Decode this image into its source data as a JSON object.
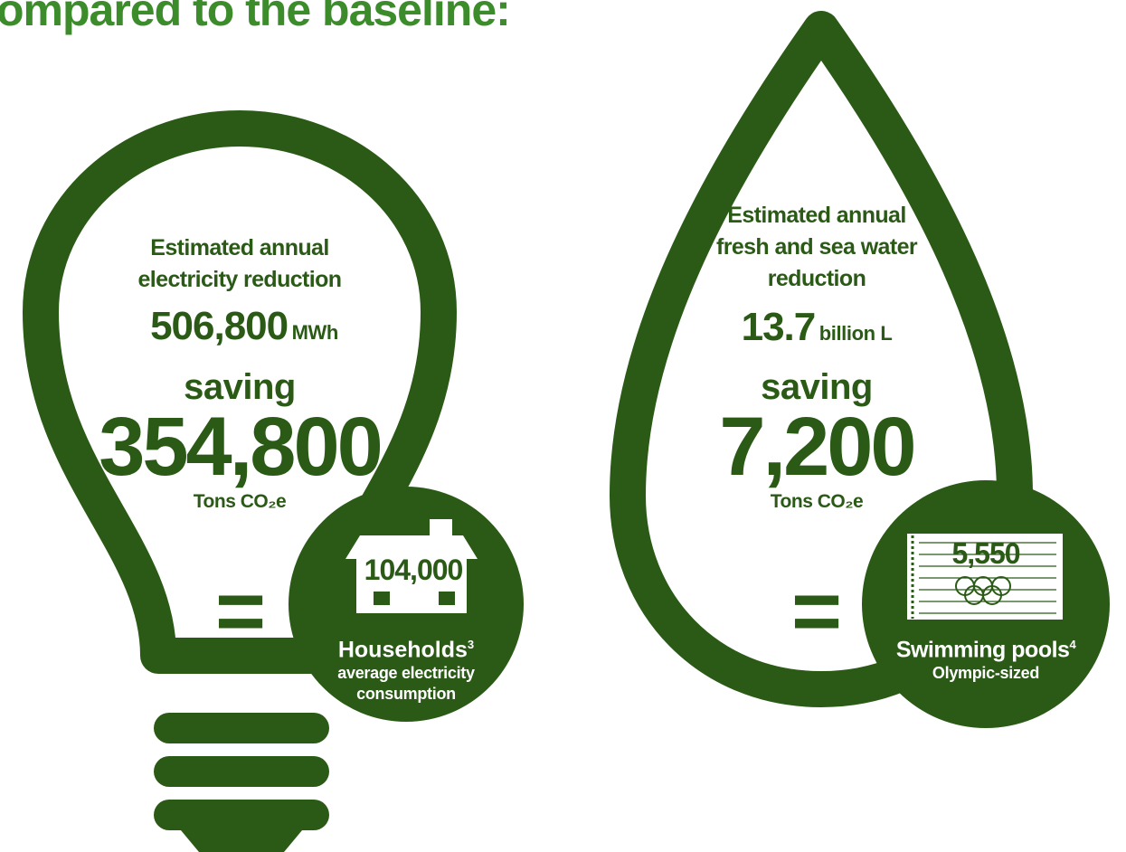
{
  "heading": "ompared to the baseline:",
  "colors": {
    "dark_green": "#2a5a16",
    "bright_green": "#3c8c2b",
    "white": "#ffffff"
  },
  "electricity": {
    "label_line1": "Estimated annual",
    "label_line2": "electricity reduction",
    "value": "506,800",
    "unit": "MWh",
    "saving_label": "saving",
    "saving_value": "354,800",
    "co2_unit": "Tons CO₂e",
    "equals_sign": "=",
    "icon": "house-icon",
    "equiv_value": "104,000",
    "equiv_label": "Households",
    "equiv_footnote": "3",
    "equiv_sub_line1": "average electricity",
    "equiv_sub_line2": "consumption"
  },
  "water": {
    "label_line1": "Estimated annual",
    "label_line2": "fresh and sea water",
    "label_line3": "reduction",
    "value": "13.7",
    "unit": "billion L",
    "saving_label": "saving",
    "saving_value": "7,200",
    "co2_unit": "Tons CO₂e",
    "equals_sign": "=",
    "icon": "swimming-pool-icon",
    "equiv_value": "5,550",
    "equiv_label": "Swimming pools",
    "equiv_footnote": "4",
    "equiv_sub_line1": "Olympic-sized"
  }
}
